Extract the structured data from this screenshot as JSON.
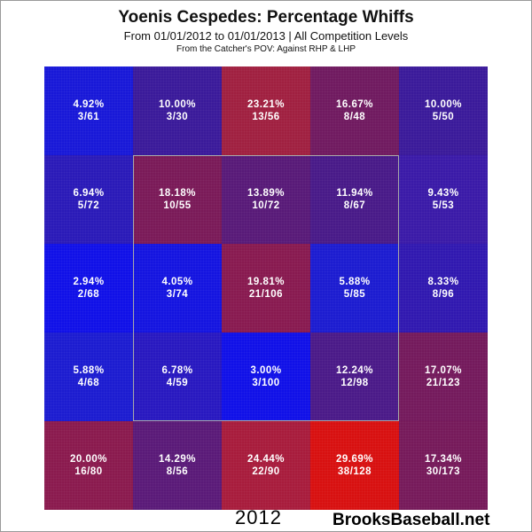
{
  "header": {
    "title": "Yoenis Cespedes: Percentage Whiffs",
    "subtitle": "From 01/01/2012 to 01/01/2013 | All Competition Levels",
    "subtitle2": "From the Catcher's POV:  Against RHP & LHP"
  },
  "footer": {
    "year": "2012",
    "brand": "BrooksBaseball.net"
  },
  "chart_data": {
    "type": "heatmap",
    "rows": 5,
    "cols": 5,
    "cells": [
      [
        {
          "pct": "4.92%",
          "frac": "3/61",
          "color": "#1818d8"
        },
        {
          "pct": "10.00%",
          "frac": "3/30",
          "color": "#3a1a9a"
        },
        {
          "pct": "23.21%",
          "frac": "13/56",
          "color": "#a02040"
        },
        {
          "pct": "16.67%",
          "frac": "8/48",
          "color": "#701a60"
        },
        {
          "pct": "10.00%",
          "frac": "5/50",
          "color": "#3a1a9a"
        }
      ],
      [
        {
          "pct": "6.94%",
          "frac": "5/72",
          "color": "#2a1ab8"
        },
        {
          "pct": "18.18%",
          "frac": "10/55",
          "color": "#7a1a58"
        },
        {
          "pct": "13.89%",
          "frac": "10/72",
          "color": "#581a78"
        },
        {
          "pct": "11.94%",
          "frac": "8/67",
          "color": "#481a88"
        },
        {
          "pct": "9.43%",
          "frac": "5/53",
          "color": "#3a1aa8"
        }
      ],
      [
        {
          "pct": "2.94%",
          "frac": "2/68",
          "color": "#1010e8"
        },
        {
          "pct": "4.05%",
          "frac": "3/74",
          "color": "#1414e0"
        },
        {
          "pct": "19.81%",
          "frac": "21/106",
          "color": "#881a50"
        },
        {
          "pct": "5.88%",
          "frac": "5/85",
          "color": "#1c1cd0"
        },
        {
          "pct": "8.33%",
          "frac": "8/96",
          "color": "#3018b0"
        }
      ],
      [
        {
          "pct": "5.88%",
          "frac": "4/68",
          "color": "#1c1cd0"
        },
        {
          "pct": "6.78%",
          "frac": "4/59",
          "color": "#2818c0"
        },
        {
          "pct": "3.00%",
          "frac": "3/100",
          "color": "#1010e8"
        },
        {
          "pct": "12.24%",
          "frac": "12/98",
          "color": "#4a1a88"
        },
        {
          "pct": "17.07%",
          "frac": "21/123",
          "color": "#741a5c"
        }
      ],
      [
        {
          "pct": "20.00%",
          "frac": "16/80",
          "color": "#8a1a4e"
        },
        {
          "pct": "14.29%",
          "frac": "8/56",
          "color": "#5a1a78"
        },
        {
          "pct": "24.44%",
          "frac": "22/90",
          "color": "#a81c3c"
        },
        {
          "pct": "29.69%",
          "frac": "38/128",
          "color": "#d81010"
        },
        {
          "pct": "17.34%",
          "frac": "30/173",
          "color": "#761a5a"
        }
      ]
    ],
    "strike_zone": {
      "rows": [
        1,
        3
      ],
      "cols": [
        1,
        3
      ]
    }
  }
}
